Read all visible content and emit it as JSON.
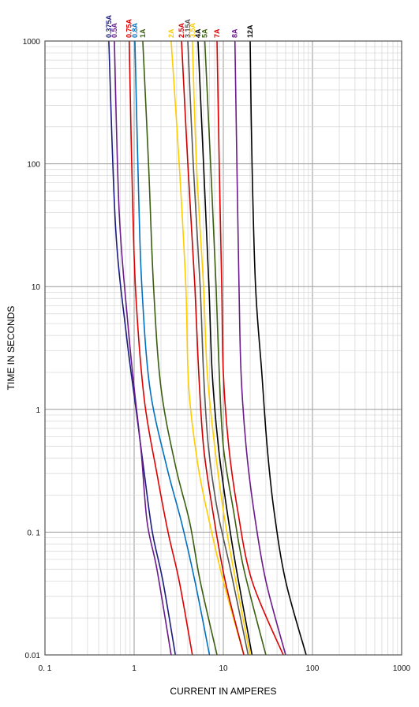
{
  "chart_data": {
    "type": "line",
    "xlabel": "CURRENT IN AMPERES",
    "ylabel": "TIME IN SECONDS",
    "xscale": "log",
    "yscale": "log",
    "xlim": [
      0.1,
      1000
    ],
    "ylim": [
      0.01,
      1000
    ],
    "x_tick_labels": [
      "0. 1",
      "1",
      "10",
      "100",
      "1000"
    ],
    "y_tick_labels": [
      "0.01",
      "0. 1",
      "1",
      "10",
      "100",
      "1000"
    ],
    "grid": true,
    "legend": "series names printed vertically above the plot",
    "series": [
      {
        "name": "0.375A",
        "color": "#1a1a80",
        "points": [
          [
            0.52,
            1000
          ],
          [
            0.62,
            30
          ],
          [
            0.82,
            4
          ],
          [
            1.05,
            1
          ],
          [
            1.3,
            0.3
          ],
          [
            1.6,
            0.1
          ],
          [
            2.1,
            0.04
          ],
          [
            2.9,
            0.01
          ]
        ]
      },
      {
        "name": "0.5A",
        "color": "#6a1a8a",
        "points": [
          [
            0.6,
            1000
          ],
          [
            0.68,
            40
          ],
          [
            0.85,
            5
          ],
          [
            1.0,
            1.5
          ],
          [
            1.2,
            0.45
          ],
          [
            1.4,
            0.12
          ],
          [
            1.8,
            0.05
          ],
          [
            2.6,
            0.01
          ]
        ]
      },
      {
        "name": "0.75A",
        "color": "#e00000",
        "points": [
          [
            0.88,
            1000
          ],
          [
            0.96,
            50
          ],
          [
            1.05,
            8
          ],
          [
            1.3,
            1.2
          ],
          [
            1.8,
            0.3
          ],
          [
            2.4,
            0.1
          ],
          [
            3.2,
            0.04
          ],
          [
            4.5,
            0.01
          ]
        ]
      },
      {
        "name": "0.8A",
        "color": "#0070c0",
        "points": [
          [
            1.02,
            1000
          ],
          [
            1.12,
            60
          ],
          [
            1.22,
            10
          ],
          [
            1.5,
            1.5
          ],
          [
            2.3,
            0.35
          ],
          [
            3.4,
            0.12
          ],
          [
            4.8,
            0.04
          ],
          [
            7.0,
            0.01
          ]
        ]
      },
      {
        "name": "1A",
        "color": "#3a5e10",
        "points": [
          [
            1.25,
            1000
          ],
          [
            1.45,
            100
          ],
          [
            1.65,
            10
          ],
          [
            2.0,
            1.5
          ],
          [
            2.9,
            0.35
          ],
          [
            4.2,
            0.12
          ],
          [
            5.5,
            0.04
          ],
          [
            8.5,
            0.01
          ]
        ]
      },
      {
        "name": "2A",
        "color": "#ffcc00",
        "points": [
          [
            2.6,
            1000
          ],
          [
            3.2,
            100
          ],
          [
            3.8,
            10
          ],
          [
            4.1,
            1.5
          ],
          [
            5.2,
            0.35
          ],
          [
            7.0,
            0.12
          ],
          [
            10,
            0.04
          ],
          [
            17,
            0.01
          ]
        ]
      },
      {
        "name": "2.5A",
        "color": "#cc0000",
        "points": [
          [
            3.4,
            1000
          ],
          [
            4.0,
            100
          ],
          [
            4.8,
            10
          ],
          [
            5.3,
            2
          ],
          [
            6.0,
            0.5
          ],
          [
            7.6,
            0.15
          ],
          [
            10.5,
            0.04
          ],
          [
            17,
            0.01
          ]
        ]
      },
      {
        "name": "3.15A",
        "color": "#555555",
        "points": [
          [
            4.0,
            1000
          ],
          [
            4.6,
            100
          ],
          [
            5.5,
            10
          ],
          [
            6.0,
            2
          ],
          [
            6.8,
            0.5
          ],
          [
            8.6,
            0.15
          ],
          [
            12,
            0.05
          ],
          [
            19,
            0.01
          ]
        ]
      },
      {
        "name": "3.5A",
        "color": "#ffcc00",
        "points": [
          [
            4.5,
            1000
          ],
          [
            5.0,
            100
          ],
          [
            6.0,
            10
          ],
          [
            6.6,
            2
          ],
          [
            8.0,
            0.5
          ],
          [
            10,
            0.15
          ],
          [
            13,
            0.05
          ],
          [
            20,
            0.01
          ]
        ]
      },
      {
        "name": "4A",
        "color": "#000000",
        "points": [
          [
            5.2,
            1000
          ],
          [
            6.0,
            100
          ],
          [
            6.9,
            10
          ],
          [
            7.5,
            2
          ],
          [
            8.8,
            0.5
          ],
          [
            11,
            0.15
          ],
          [
            14,
            0.05
          ],
          [
            21,
            0.01
          ]
        ]
      },
      {
        "name": "5A",
        "color": "#3a5e10",
        "points": [
          [
            6.2,
            1000
          ],
          [
            7.2,
            100
          ],
          [
            8.3,
            10
          ],
          [
            9.0,
            2
          ],
          [
            10,
            0.5
          ],
          [
            13,
            0.15
          ],
          [
            17,
            0.05
          ],
          [
            30,
            0.01
          ]
        ]
      },
      {
        "name": "7A",
        "color": "#e00000",
        "points": [
          [
            8.5,
            1000
          ],
          [
            9.0,
            100
          ],
          [
            9.6,
            10
          ],
          [
            10,
            2
          ],
          [
            11.5,
            0.5
          ],
          [
            14.5,
            0.15
          ],
          [
            21,
            0.04
          ],
          [
            47,
            0.01
          ]
        ]
      },
      {
        "name": "8A",
        "color": "#6a1a8a",
        "points": [
          [
            13.5,
            1000
          ],
          [
            14.2,
            100
          ],
          [
            15,
            10
          ],
          [
            15.8,
            2
          ],
          [
            18,
            0.5
          ],
          [
            22,
            0.15
          ],
          [
            30,
            0.04
          ],
          [
            50,
            0.01
          ]
        ]
      },
      {
        "name": "12A",
        "color": "#000000",
        "points": [
          [
            20,
            1000
          ],
          [
            21,
            100
          ],
          [
            23,
            10
          ],
          [
            27,
            2
          ],
          [
            31,
            0.5
          ],
          [
            37,
            0.15
          ],
          [
            50,
            0.04
          ],
          [
            85,
            0.01
          ]
        ]
      }
    ]
  }
}
